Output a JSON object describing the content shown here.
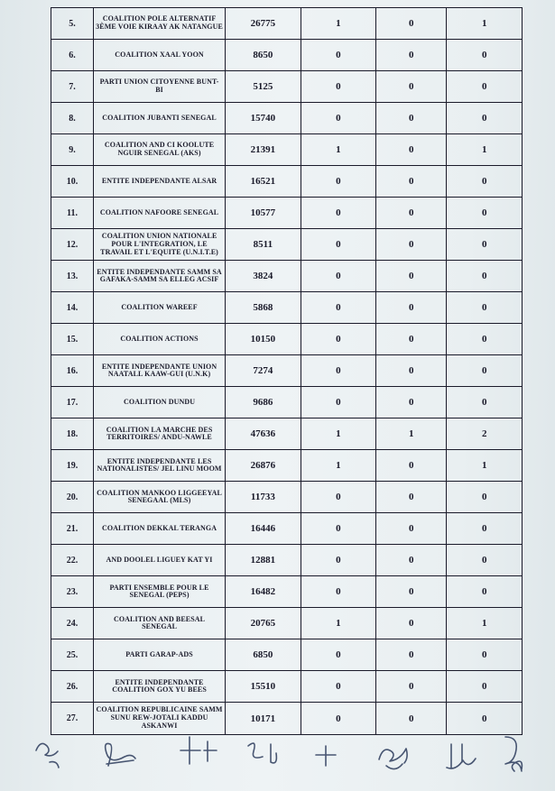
{
  "table": {
    "type": "table",
    "border_color": "#1a1a2a",
    "text_color": "#1a1a2a",
    "background_color": "#e8eef0",
    "col_widths_pct": [
      9,
      28,
      16,
      16,
      15,
      16
    ],
    "header_fontsize_pt": 8,
    "num_fontsize_pt": 10,
    "val_fontsize_pt": 11,
    "rows": [
      {
        "n": "5.",
        "name": "COALITION POLE ALTERNATIF 3ème VOIE KIRAAY AK NATANGUE",
        "v": [
          "26775",
          "1",
          "0",
          "1"
        ]
      },
      {
        "n": "6.",
        "name": "COALITION XAAL YOON",
        "v": [
          "8650",
          "0",
          "0",
          "0"
        ]
      },
      {
        "n": "7.",
        "name": "PARTI UNION CITOYENNE BUNT- BI",
        "v": [
          "5125",
          "0",
          "0",
          "0"
        ]
      },
      {
        "n": "8.",
        "name": "COALITION JUBANTI SENEGAL",
        "v": [
          "15740",
          "0",
          "0",
          "0"
        ]
      },
      {
        "n": "9.",
        "name": "COALITION AND CI KOOLUTE NGUIR SENEGAL (AKS)",
        "v": [
          "21391",
          "1",
          "0",
          "1"
        ]
      },
      {
        "n": "10.",
        "name": "ENTITE INDEPENDANTE ALSAR",
        "v": [
          "16521",
          "0",
          "0",
          "0"
        ]
      },
      {
        "n": "11.",
        "name": "COALITION NAFOORE SENEGAL",
        "v": [
          "10577",
          "0",
          "0",
          "0"
        ]
      },
      {
        "n": "12.",
        "name": "COALITION UNION NATIONALE POUR L'INTEGRATION, LE TRAVAIL ET L'EQUITE (U.N.I.T.E)",
        "v": [
          "8511",
          "0",
          "0",
          "0"
        ]
      },
      {
        "n": "13.",
        "name": "ENTITE INDEPENDANTE SAMM SA GAFAKA-SAMM SA ELLEG ACSIF",
        "v": [
          "3824",
          "0",
          "0",
          "0"
        ]
      },
      {
        "n": "14.",
        "name": "COALITION WAREEF",
        "v": [
          "5868",
          "0",
          "0",
          "0"
        ]
      },
      {
        "n": "15.",
        "name": "COALITION ACTIONS",
        "v": [
          "10150",
          "0",
          "0",
          "0"
        ]
      },
      {
        "n": "16.",
        "name": "ENTITE INDEPENDANTE UNION NAATALL KAAW-GUI (U.N.K)",
        "v": [
          "7274",
          "0",
          "0",
          "0"
        ]
      },
      {
        "n": "17.",
        "name": "COALITION DUNDU",
        "v": [
          "9686",
          "0",
          "0",
          "0"
        ]
      },
      {
        "n": "18.",
        "name": "COALITION LA MARCHE DES TERRITOIRES/ ANDU-NAWLE",
        "v": [
          "47636",
          "1",
          "1",
          "2"
        ]
      },
      {
        "n": "19.",
        "name": "ENTITE INDEPENDANTE LES NATIONALISTES/ JEL LINU MOOM",
        "v": [
          "26876",
          "1",
          "0",
          "1"
        ]
      },
      {
        "n": "20.",
        "name": "COALITION MANKOO LIGGEEYAL SENEGAAL (MLS)",
        "v": [
          "11733",
          "0",
          "0",
          "0"
        ]
      },
      {
        "n": "21.",
        "name": "COALITION DEKKAL TERANGA",
        "v": [
          "16446",
          "0",
          "0",
          "0"
        ]
      },
      {
        "n": "22.",
        "name": "AND DOOLEL LIGUEY KAT YI",
        "v": [
          "12881",
          "0",
          "0",
          "0"
        ]
      },
      {
        "n": "23.",
        "name": "PARTI ENSEMBLE POUR LE SENEGAL (PEPS)",
        "v": [
          "16482",
          "0",
          "0",
          "0"
        ]
      },
      {
        "n": "24.",
        "name": "COALITION AND BEESAL SENEGAL",
        "v": [
          "20765",
          "1",
          "0",
          "1"
        ]
      },
      {
        "n": "25.",
        "name": "PARTI GARAP-ADS",
        "v": [
          "6850",
          "0",
          "0",
          "0"
        ]
      },
      {
        "n": "26.",
        "name": "ENTITE INDEPENDANTE COALITION GOX YU BEES",
        "v": [
          "15510",
          "0",
          "0",
          "0"
        ]
      },
      {
        "n": "27.",
        "name": "COALITION REPUBLICAINE SAMM SUNU REW-JOTALI KADDU ASKANWI",
        "v": [
          "10171",
          "0",
          "0",
          "0"
        ]
      }
    ]
  }
}
